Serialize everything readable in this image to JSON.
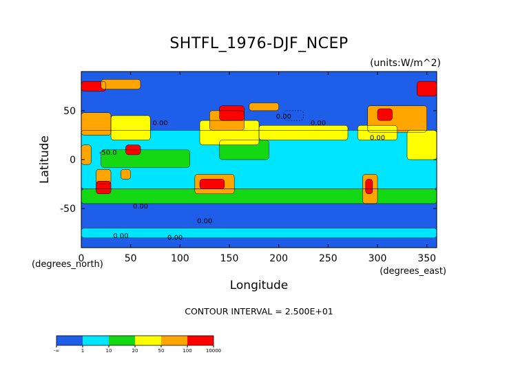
{
  "chart_data": {
    "type": "heatmap",
    "title": "SHTFL_1976-DJF_NCEP",
    "units_label": "(units:W/m^2)",
    "xlabel": "Longitude",
    "ylabel": "Latitude",
    "x_unit_label": "(degrees_east)",
    "y_unit_label": "(degrees_north)",
    "xlim": [
      0,
      360
    ],
    "ylim": [
      -90,
      90
    ],
    "x_ticks": [
      0,
      50,
      100,
      150,
      200,
      250,
      300,
      350
    ],
    "y_ticks": [
      50,
      0,
      -50
    ],
    "contour_interval_text": "CONTOUR INTERVAL = 2.500E+01",
    "contour_labels": [
      "-50.0",
      "0.00",
      "0.00",
      "0.00",
      "0.00",
      "0.00",
      "0.00",
      "0.00",
      "0.00"
    ],
    "colorbar": {
      "colors": [
        "#1e5ee8",
        "#00e5ff",
        "#14d814",
        "#ffff00",
        "#ffa500",
        "#ff0000"
      ],
      "tick_labels": [
        "-∞",
        "1",
        "10",
        "20",
        "50",
        "100",
        "10000"
      ]
    },
    "regions": [
      {
        "lon": [
          0,
          360
        ],
        "lat": [
          -90,
          90
        ],
        "value": -10
      },
      {
        "lon": [
          0,
          360
        ],
        "lat": [
          -30,
          30
        ],
        "value": 5
      },
      {
        "lon": [
          0,
          360
        ],
        "lat": [
          -45,
          -30
        ],
        "value": 15
      },
      {
        "lon": [
          0,
          360
        ],
        "lat": [
          -80,
          -70
        ],
        "value": 5
      },
      {
        "lon": [
          20,
          110
        ],
        "lat": [
          -8,
          10
        ],
        "value": 15
      },
      {
        "lon": [
          140,
          190
        ],
        "lat": [
          0,
          20
        ],
        "value": 15
      },
      {
        "lon": [
          120,
          180
        ],
        "lat": [
          15,
          40
        ],
        "value": 30
      },
      {
        "lon": [
          180,
          270
        ],
        "lat": [
          20,
          35
        ],
        "value": 30
      },
      {
        "lon": [
          130,
          165
        ],
        "lat": [
          30,
          50
        ],
        "value": 60
      },
      {
        "lon": [
          170,
          200
        ],
        "lat": [
          50,
          58
        ],
        "value": 60
      },
      {
        "lon": [
          0,
          30
        ],
        "lat": [
          25,
          48
        ],
        "value": 60
      },
      {
        "lon": [
          30,
          70
        ],
        "lat": [
          20,
          45
        ],
        "value": 40
      },
      {
        "lon": [
          290,
          350
        ],
        "lat": [
          28,
          55
        ],
        "value": 60
      },
      {
        "lon": [
          280,
          320
        ],
        "lat": [
          20,
          35
        ],
        "value": 30
      },
      {
        "lon": [
          330,
          360
        ],
        "lat": [
          0,
          30
        ],
        "value": 30
      },
      {
        "lon": [
          0,
          10
        ],
        "lat": [
          -5,
          15
        ],
        "value": 60
      },
      {
        "lon": [
          15,
          30
        ],
        "lat": [
          -25,
          -10
        ],
        "value": 60
      },
      {
        "lon": [
          15,
          30
        ],
        "lat": [
          -35,
          -22
        ],
        "value": 120
      },
      {
        "lon": [
          40,
          50
        ],
        "lat": [
          -20,
          -10
        ],
        "value": 60
      },
      {
        "lon": [
          45,
          60
        ],
        "lat": [
          5,
          15
        ],
        "value": 120
      },
      {
        "lon": [
          115,
          155
        ],
        "lat": [
          -35,
          -15
        ],
        "value": 60
      },
      {
        "lon": [
          120,
          145
        ],
        "lat": [
          -30,
          -20
        ],
        "value": 120
      },
      {
        "lon": [
          285,
          300
        ],
        "lat": [
          -45,
          -15
        ],
        "value": 60
      },
      {
        "lon": [
          288,
          295
        ],
        "lat": [
          -35,
          -20
        ],
        "value": 120
      },
      {
        "lon": [
          140,
          165
        ],
        "lat": [
          40,
          55
        ],
        "value": 120
      },
      {
        "lon": [
          300,
          315
        ],
        "lat": [
          40,
          52
        ],
        "value": 120
      },
      {
        "lon": [
          340,
          360
        ],
        "lat": [
          65,
          80
        ],
        "value": 120
      },
      {
        "lon": [
          0,
          25
        ],
        "lat": [
          70,
          80
        ],
        "value": 120
      },
      {
        "lon": [
          20,
          60
        ],
        "lat": [
          72,
          82
        ],
        "value": 60
      },
      {
        "lon": [
          205,
          225
        ],
        "lat": [
          40,
          50
        ],
        "value": -10
      }
    ]
  }
}
